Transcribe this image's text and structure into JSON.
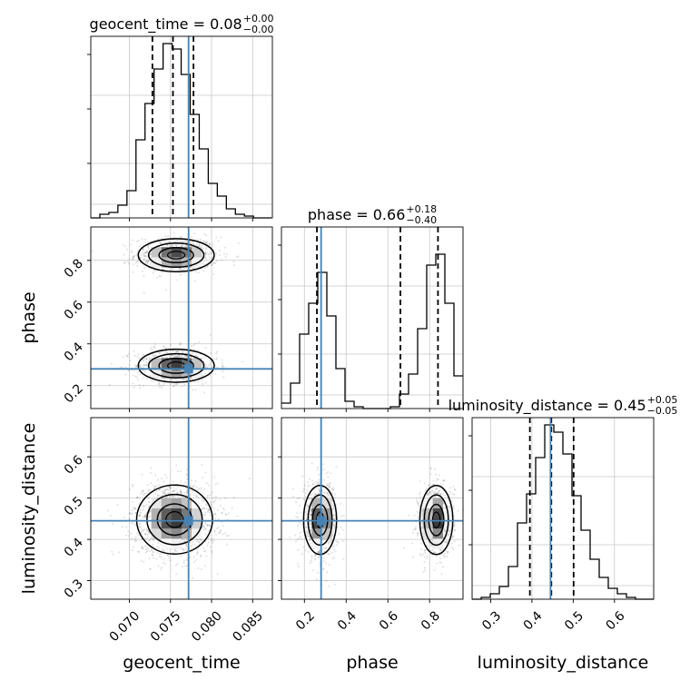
{
  "chart_data": {
    "type": "corner",
    "parameters": [
      "geocent_time",
      "phase",
      "luminosity_distance"
    ],
    "truths": [
      0.0772,
      0.28,
      0.445
    ],
    "truth_color": "#4682b4",
    "grid": true,
    "titles": [
      {
        "parameter": "geocent_time",
        "text": "geocent_time = 0.08",
        "sup": "+0.00",
        "sub": "−0.00"
      },
      {
        "parameter": "phase",
        "text": "phase = 0.66",
        "sup": "+0.18",
        "sub": "−0.40"
      },
      {
        "parameter": "luminosity_distance",
        "text": "luminosity_distance = 0.45",
        "sup": "+0.05",
        "sub": "−0.05"
      }
    ],
    "axes": {
      "geocent_time": {
        "range": [
          0.0653,
          0.0874
        ],
        "ticks": [
          0.07,
          0.075,
          0.08,
          0.085
        ],
        "tick_labels": [
          "0.070",
          "0.075",
          "0.080",
          "0.085"
        ],
        "label": "geocent_time"
      },
      "phase": {
        "range": [
          0.09,
          0.96
        ],
        "ticks": [
          0.2,
          0.4,
          0.6,
          0.8
        ],
        "tick_labels": [
          "0.2",
          "0.4",
          "0.6",
          "0.8"
        ],
        "label": "phase"
      },
      "luminosity_distance": {
        "range": [
          0.255,
          0.695
        ],
        "ticks": [
          0.3,
          0.4,
          0.5,
          0.6
        ],
        "tick_labels": [
          "0.3",
          "0.4",
          "0.5",
          "0.6"
        ],
        "label": "luminosity_distance"
      }
    },
    "histograms": [
      {
        "parameter": "geocent_time",
        "bin_edges": [
          0.0653,
          0.0664,
          0.0675,
          0.0686,
          0.0697,
          0.0708,
          0.0719,
          0.073,
          0.0741,
          0.0752,
          0.0763,
          0.0774,
          0.0785,
          0.0796,
          0.0807,
          0.0818,
          0.0829,
          0.084,
          0.0851,
          0.0862,
          0.0873
        ],
        "counts": [
          0,
          0.02,
          0.03,
          0.07,
          0.15,
          0.43,
          0.63,
          0.82,
          0.96,
          0.93,
          0.79,
          0.57,
          0.38,
          0.19,
          0.12,
          0.05,
          0.02,
          0.01,
          0,
          0
        ],
        "quantiles": [
          0.0728,
          0.0753,
          0.0778
        ]
      },
      {
        "parameter": "phase",
        "bin_edges": [
          0.09,
          0.1335,
          0.177,
          0.2205,
          0.264,
          0.3075,
          0.351,
          0.3945,
          0.438,
          0.4815,
          0.525,
          0.5685,
          0.612,
          0.6555,
          0.699,
          0.7425,
          0.786,
          0.8295,
          0.873,
          0.9165,
          0.96
        ],
        "counts": [
          0.03,
          0.14,
          0.41,
          0.58,
          0.75,
          0.51,
          0.22,
          0.04,
          0.01,
          0,
          0,
          0,
          0.01,
          0.08,
          0.19,
          0.44,
          0.79,
          0.85,
          0.58,
          0.18
        ],
        "quantiles": [
          0.26,
          0.66,
          0.84
        ]
      },
      {
        "parameter": "luminosity_distance",
        "bin_edges": [
          0.255,
          0.277,
          0.299,
          0.321,
          0.343,
          0.365,
          0.387,
          0.409,
          0.431,
          0.453,
          0.475,
          0.497,
          0.519,
          0.541,
          0.563,
          0.585,
          0.607,
          0.629,
          0.651,
          0.673,
          0.695
        ],
        "counts": [
          0,
          0.01,
          0.03,
          0.07,
          0.18,
          0.42,
          0.58,
          0.78,
          0.96,
          0.92,
          0.8,
          0.57,
          0.38,
          0.22,
          0.12,
          0.06,
          0.03,
          0.01,
          0,
          0
        ],
        "quantiles": [
          0.395,
          0.447,
          0.501
        ]
      }
    ],
    "joint_posteriors": [
      {
        "x": "geocent_time",
        "y": "phase",
        "modes": [
          {
            "x": 0.0757,
            "y": 0.825,
            "sx": 0.0021,
            "sy": 0.036,
            "w": 0.49
          },
          {
            "x": 0.0757,
            "y": 0.295,
            "sx": 0.0021,
            "sy": 0.036,
            "w": 0.51
          }
        ]
      },
      {
        "x": "geocent_time",
        "y": "luminosity_distance",
        "modes": [
          {
            "x": 0.0755,
            "y": 0.448,
            "sx": 0.0021,
            "sy": 0.038,
            "w": 1
          }
        ]
      },
      {
        "x": "phase",
        "y": "luminosity_distance",
        "modes": [
          {
            "x": 0.275,
            "y": 0.447,
            "sx": 0.036,
            "sy": 0.038,
            "w": 0.5
          },
          {
            "x": 0.832,
            "y": 0.447,
            "sx": 0.036,
            "sy": 0.038,
            "w": 0.5
          }
        ]
      }
    ]
  }
}
